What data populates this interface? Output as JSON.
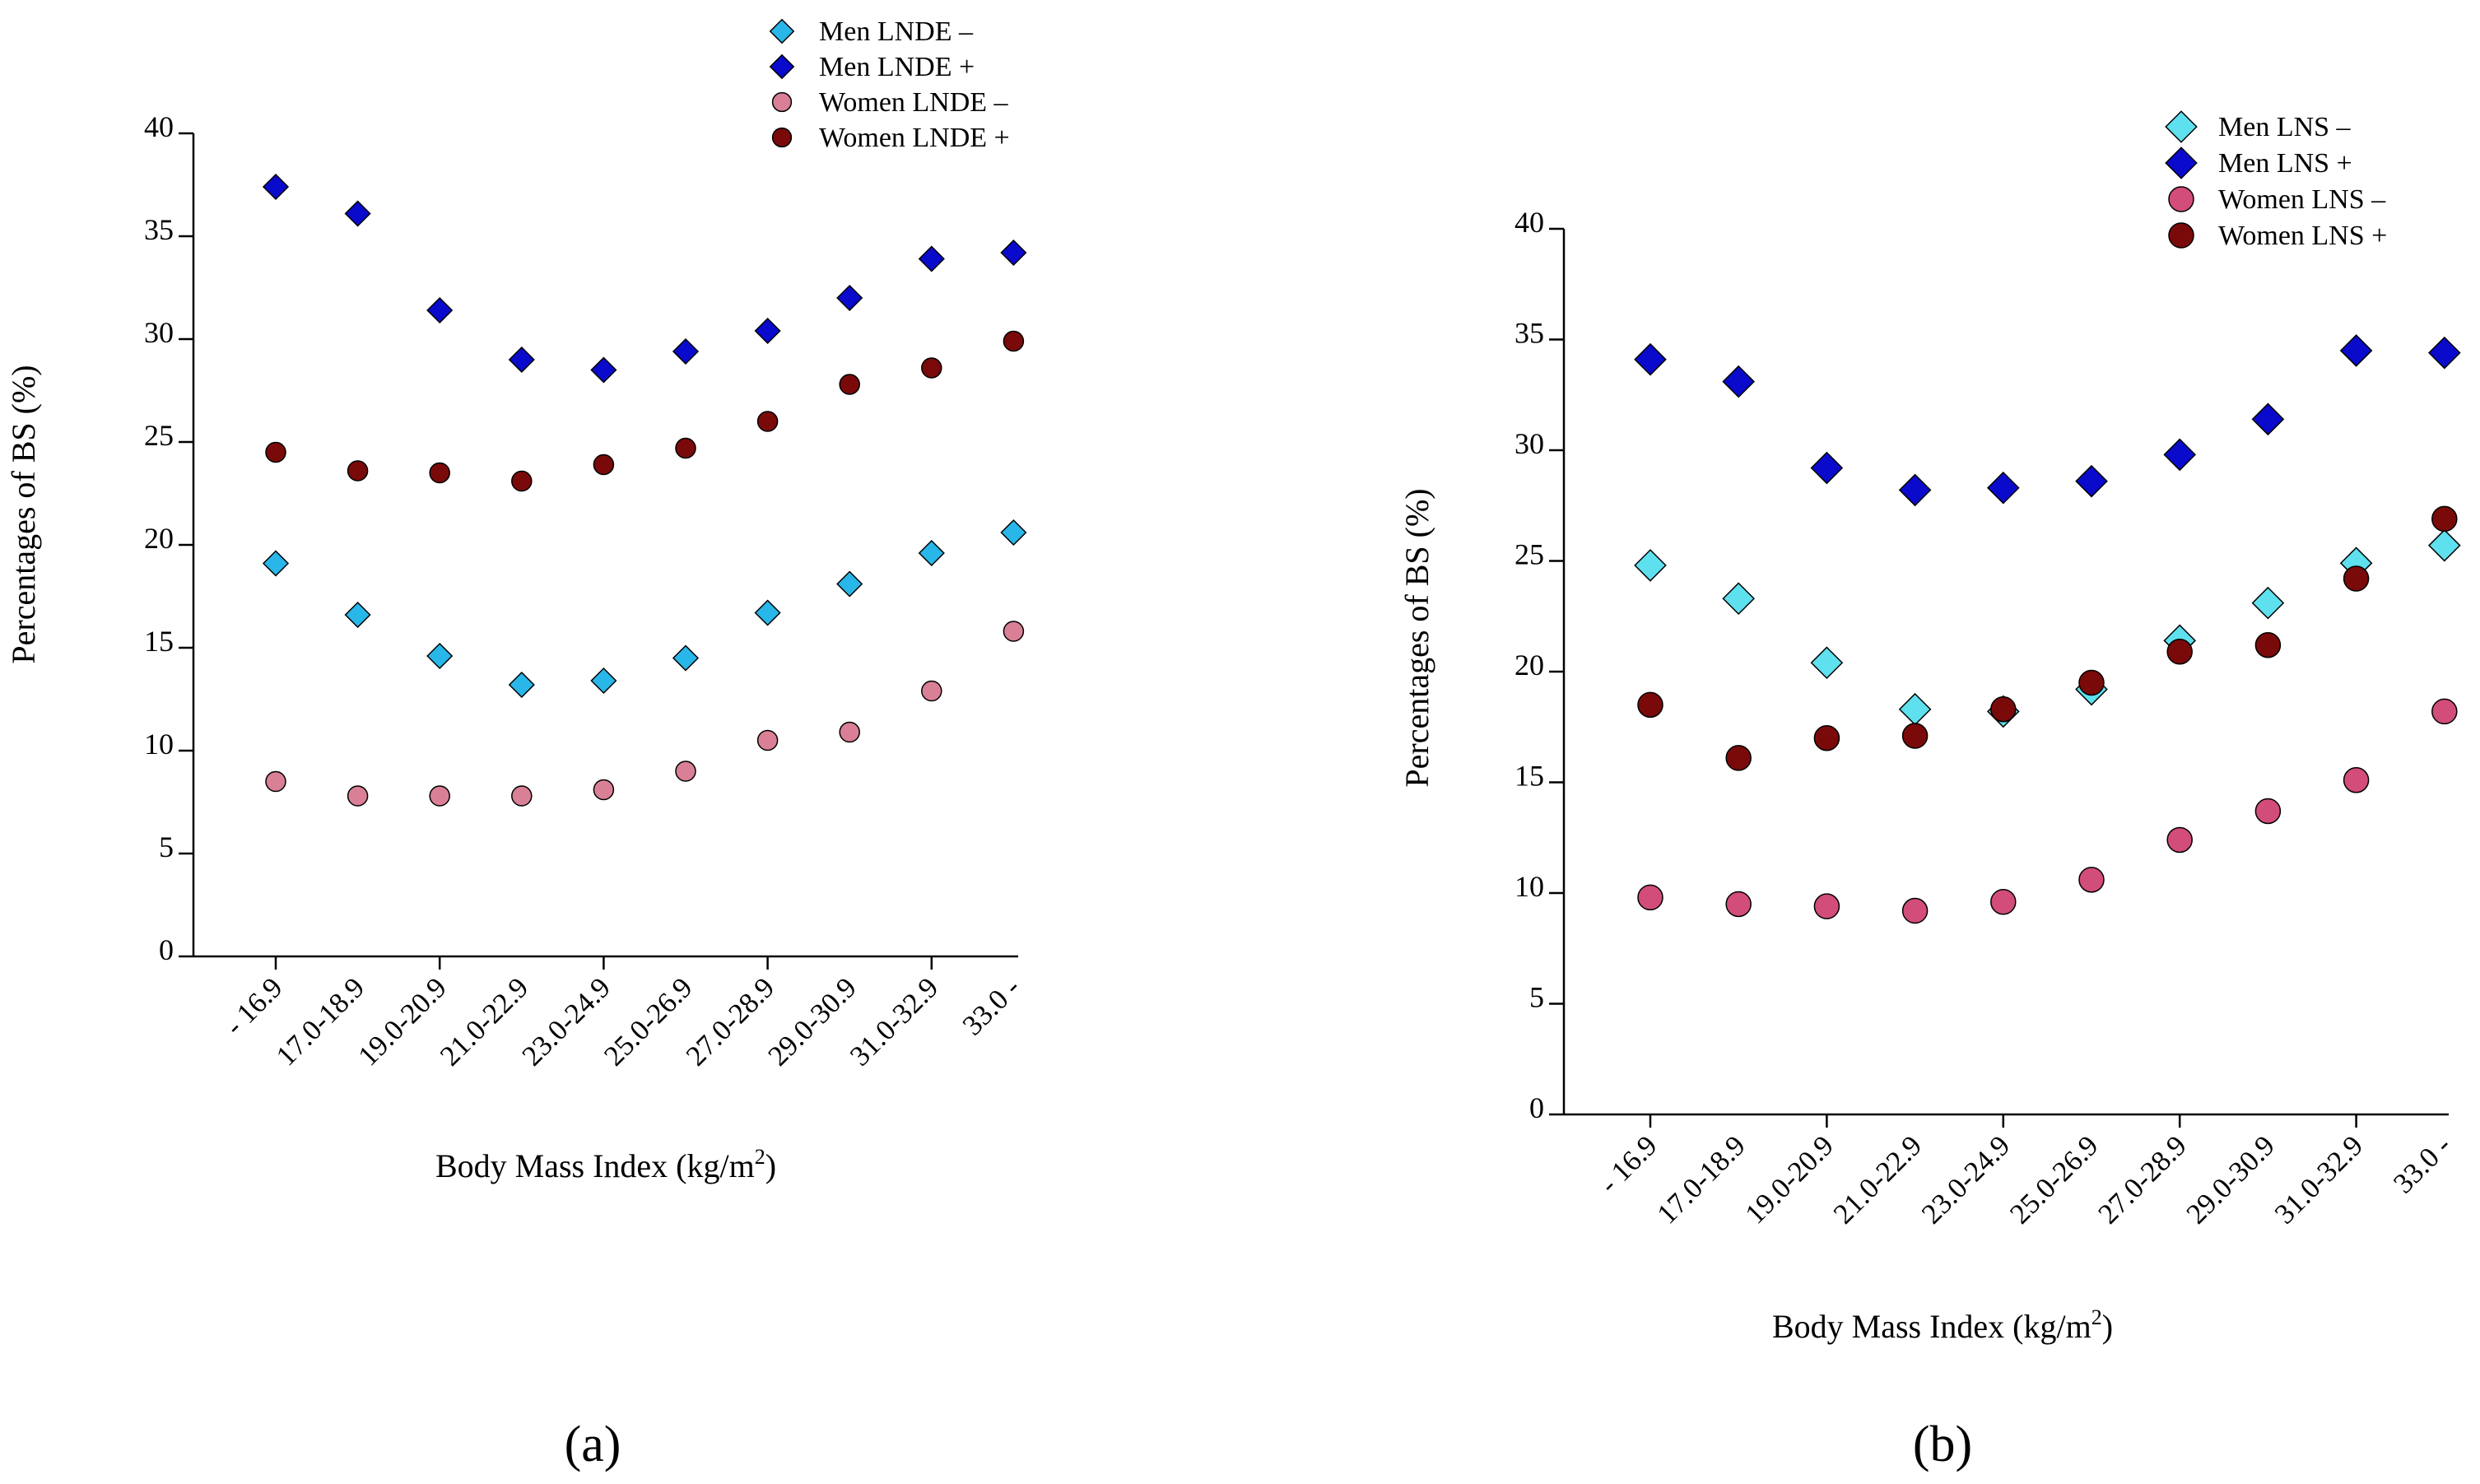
{
  "chart_data": [
    {
      "panel": "(a)",
      "type": "scatter",
      "categories": [
        "- 16.9",
        "17.0-18.9",
        "19.0-20.9",
        "21.0-22.9",
        "23.0-24.9",
        "25.0-26.9",
        "27.0-28.9",
        "29.0-30.9",
        "31.0-32.9",
        "33.0 -"
      ],
      "ylabel": "Percentages of BS (%)",
      "xlabel_main": "Body Mass Index (kg/m",
      "xlabel_sup": "2",
      "xlabel_end": ")",
      "ylim": [
        0,
        40
      ],
      "yticks": [
        0,
        5,
        10,
        15,
        20,
        25,
        30,
        35,
        40
      ],
      "legend_position": "top-right",
      "series": [
        {
          "name": "Men LNDE –",
          "marker": "diamond",
          "color": "#29b6e8",
          "values": [
            19.1,
            16.6,
            14.6,
            13.2,
            13.4,
            14.5,
            16.7,
            18.1,
            19.6,
            20.6
          ]
        },
        {
          "name": "Men LNDE +",
          "marker": "diamond",
          "color": "#0a0acc",
          "values": [
            37.4,
            36.1,
            31.4,
            29.0,
            28.5,
            29.4,
            30.4,
            32.0,
            33.9,
            34.2
          ]
        },
        {
          "name": "Women LNDE –",
          "marker": "circle",
          "color": "#d98096",
          "values": [
            8.5,
            7.8,
            7.8,
            7.8,
            8.1,
            9.0,
            10.5,
            10.9,
            12.9,
            15.8
          ]
        },
        {
          "name": "Women LNDE +",
          "marker": "circle",
          "color": "#7a0a0a",
          "values": [
            24.5,
            23.6,
            23.5,
            23.1,
            23.9,
            24.7,
            26.0,
            27.8,
            28.6,
            29.9
          ]
        }
      ]
    },
    {
      "panel": "(b)",
      "type": "scatter",
      "categories": [
        "- 16.9",
        "17.0-18.9",
        "19.0-20.9",
        "21.0-22.9",
        "23.0-24.9",
        "25.0-26.9",
        "27.0-28.9",
        "29.0-30.9",
        "31.0-32.9",
        "33.0 -"
      ],
      "ylabel": "Percentages of BS (%)",
      "xlabel_main": "Body Mass Index (kg/m",
      "xlabel_sup": "2",
      "xlabel_end": ")",
      "ylim": [
        0,
        40
      ],
      "yticks": [
        0,
        5,
        10,
        15,
        20,
        25,
        30,
        35,
        40
      ],
      "legend_position": "top-right",
      "series": [
        {
          "name": "Men LNS –",
          "marker": "diamond",
          "color": "#5fe0ee",
          "values": [
            24.8,
            23.3,
            20.4,
            18.3,
            18.2,
            19.2,
            21.4,
            23.1,
            24.9,
            25.7
          ]
        },
        {
          "name": "Men LNS +",
          "marker": "diamond",
          "color": "#0a0acc",
          "values": [
            34.1,
            33.1,
            29.2,
            28.2,
            28.3,
            28.6,
            29.8,
            31.4,
            34.5,
            34.4
          ]
        },
        {
          "name": "Women LNS –",
          "marker": "circle",
          "color": "#d24d7a",
          "values": [
            9.8,
            9.5,
            9.4,
            9.2,
            9.6,
            10.6,
            12.4,
            13.7,
            15.1,
            18.2
          ]
        },
        {
          "name": "Women LNS +",
          "marker": "circle",
          "color": "#7a0a0a",
          "values": [
            18.5,
            16.1,
            17.0,
            17.1,
            18.3,
            19.5,
            20.9,
            21.2,
            24.2,
            26.9
          ]
        }
      ]
    }
  ]
}
